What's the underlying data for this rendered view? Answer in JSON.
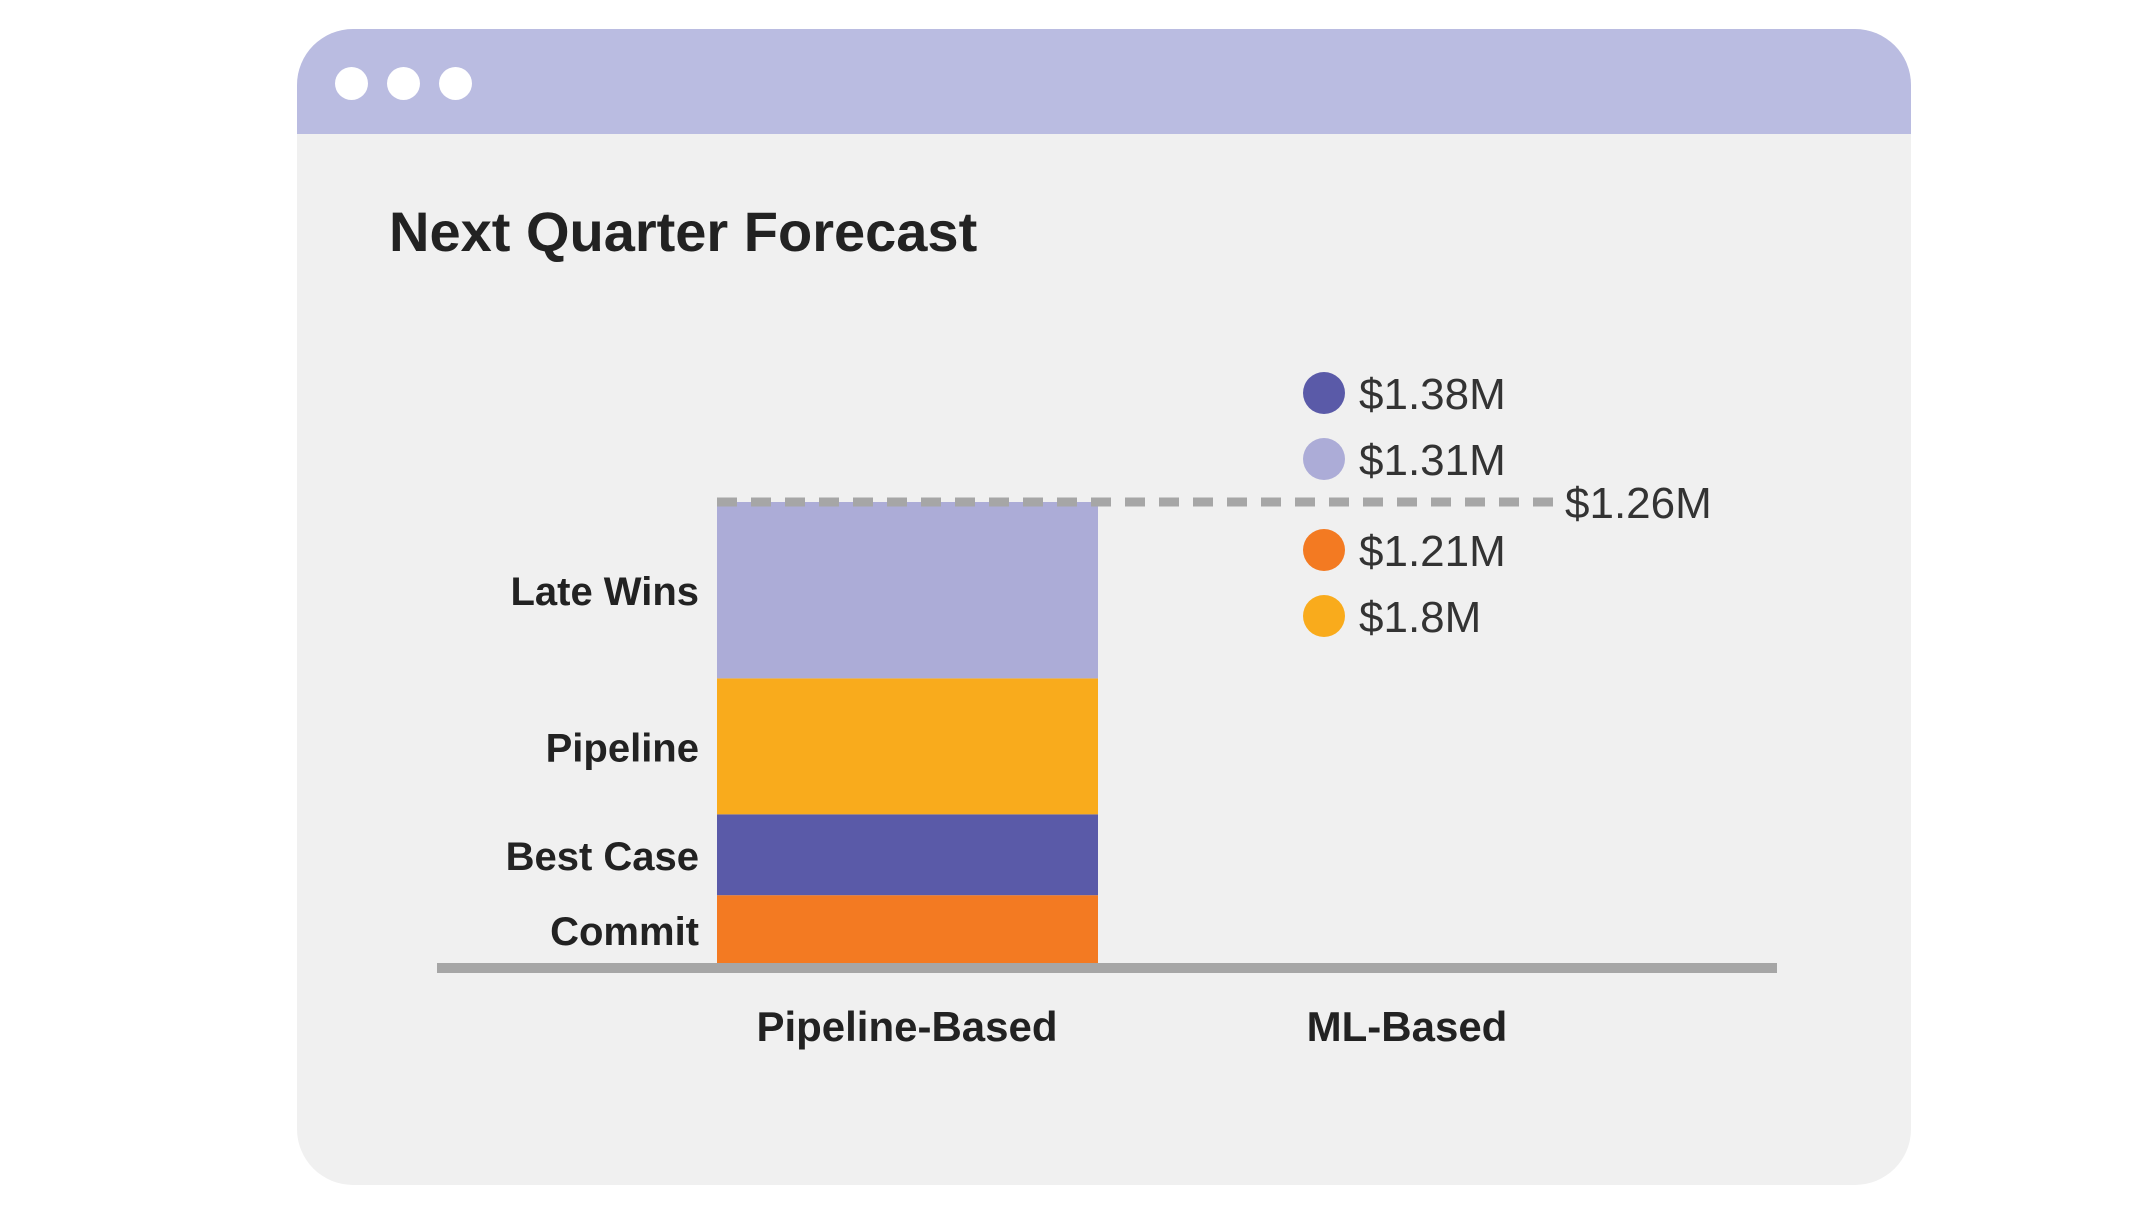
{
  "window": {
    "title": "Next Quarter Forecast",
    "controls": [
      "close-dot",
      "minimize-dot",
      "maximize-dot"
    ],
    "titlebar_color": "#babce1",
    "background_color": "#f0f0f0"
  },
  "chart_data": {
    "type": "bar",
    "stacked": true,
    "title": "Next Quarter Forecast",
    "categories": [
      "Pipeline-Based",
      "ML-Based"
    ],
    "series": [
      {
        "name": "Commit",
        "color": "#f37a22",
        "values": [
          0.19,
          null
        ]
      },
      {
        "name": "Best Case",
        "color": "#5a5aa8",
        "values": [
          0.22,
          null
        ]
      },
      {
        "name": "Pipeline",
        "color": "#f9ab1c",
        "values": [
          0.37,
          null
        ]
      },
      {
        "name": "Late Wins",
        "color": "#acacd7",
        "values": [
          0.48,
          null
        ]
      }
    ],
    "reference_line": {
      "value": 1.26,
      "label": "$1.26M",
      "style": "dashed",
      "color": "#a6a6a6"
    },
    "ml_markers": [
      {
        "label": "$1.38M",
        "color": "#5a5aa8"
      },
      {
        "label": "$1.31M",
        "color": "#acacd7"
      },
      {
        "label": "$1.21M",
        "color": "#f37a22"
      },
      {
        "label": "$1.8M",
        "color": "#f9ab1c"
      }
    ],
    "xlabel": "",
    "ylabel": "",
    "ylim": [
      0,
      1.26
    ],
    "grid": false,
    "baseline_color": "#a6a6a6"
  }
}
